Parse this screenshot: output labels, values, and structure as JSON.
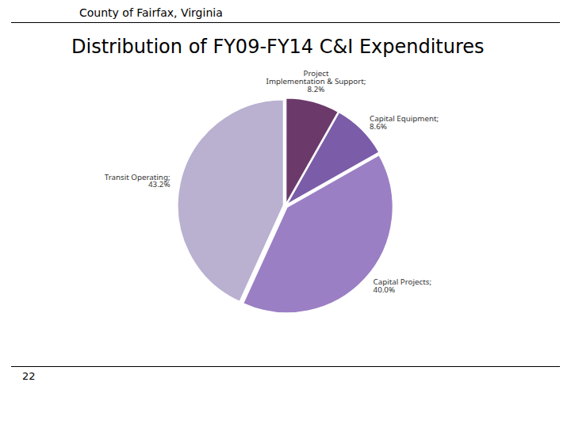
{
  "chart_data": {
    "type": "pie",
    "title": "Distribution of FY09-FY14 C&I Expenditures",
    "annotations": [
      "County of Fairfax, Virginia",
      "22"
    ],
    "categories": [
      "Project\nImplementation & Support;",
      "Capital Equipment;",
      "Capital Projects;",
      "Transit Operating;"
    ],
    "values": [
      8.2,
      8.6,
      40.0,
      43.2
    ],
    "value_labels": [
      "8.2%",
      "8.6%",
      "40.0%",
      "43.2%"
    ],
    "colors": [
      "#6B3A6B",
      "#7B5CA8",
      "#9B7FC4",
      "#BAB0D0"
    ],
    "data_labels": true
  }
}
